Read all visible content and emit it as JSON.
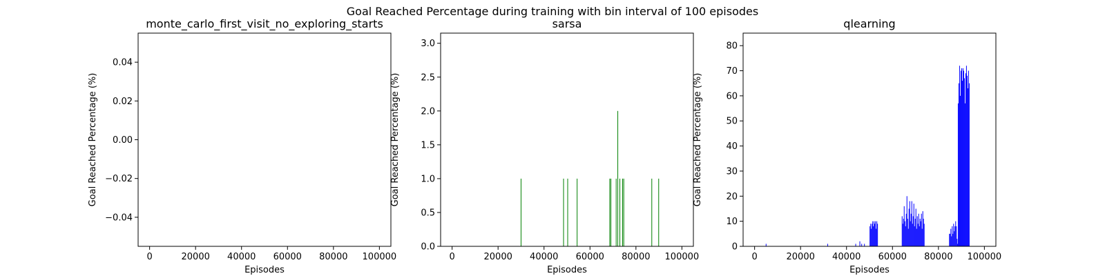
{
  "figure": {
    "suptitle": "Goal Reached Percentage during training with bin interval of 100 episodes"
  },
  "chart_data": [
    {
      "type": "bar",
      "title": "monte_carlo_first_visit_no_exploring_starts",
      "xlabel": "Episodes",
      "ylabel": "Goal Reached Percentage (%)",
      "xlim": [
        -5000,
        105000
      ],
      "ylim": [
        -0.055,
        0.055
      ],
      "xticks": [
        0,
        20000,
        40000,
        60000,
        80000,
        100000
      ],
      "yticks": [
        -0.04,
        -0.02,
        0.0,
        0.02,
        0.04
      ],
      "ytick_labels": [
        "−0.04",
        "−0.02",
        "0.00",
        "0.02",
        "0.04"
      ],
      "color": "#ff0000",
      "bin_width": 100,
      "bars": []
    },
    {
      "type": "bar",
      "title": "sarsa",
      "xlabel": "Episodes",
      "ylabel": "Goal Reached Percentage (%)",
      "xlim": [
        -5000,
        105000
      ],
      "ylim": [
        0,
        3.15
      ],
      "xticks": [
        0,
        20000,
        40000,
        60000,
        80000,
        100000
      ],
      "yticks": [
        0.0,
        0.5,
        1.0,
        1.5,
        2.0,
        2.5,
        3.0
      ],
      "ytick_labels": [
        "0.0",
        "0.5",
        "1.0",
        "1.5",
        "2.0",
        "2.5",
        "3.0"
      ],
      "color": "#008000",
      "bin_width": 100,
      "bars": [
        {
          "x": 30000,
          "y": 1
        },
        {
          "x": 48500,
          "y": 1
        },
        {
          "x": 50300,
          "y": 1
        },
        {
          "x": 54400,
          "y": 1
        },
        {
          "x": 68600,
          "y": 1
        },
        {
          "x": 69100,
          "y": 1
        },
        {
          "x": 71400,
          "y": 1
        },
        {
          "x": 72100,
          "y": 2
        },
        {
          "x": 73000,
          "y": 1
        },
        {
          "x": 74200,
          "y": 1
        },
        {
          "x": 74700,
          "y": 1
        },
        {
          "x": 86900,
          "y": 1
        },
        {
          "x": 89900,
          "y": 1
        }
      ]
    },
    {
      "type": "bar",
      "title": "qlearning",
      "xlabel": "Episodes",
      "ylabel": "Goal Reached Percentage (%)",
      "xlim": [
        -5000,
        105000
      ],
      "ylim": [
        0,
        85
      ],
      "xticks": [
        0,
        20000,
        40000,
        60000,
        80000,
        100000
      ],
      "yticks": [
        0,
        10,
        20,
        30,
        40,
        50,
        60,
        70,
        80
      ],
      "ytick_labels": [
        "0",
        "10",
        "20",
        "30",
        "40",
        "50",
        "60",
        "70",
        "80"
      ],
      "color": "#0000ff",
      "bin_width": 100,
      "bars": [
        {
          "x": 5000,
          "y": 1
        },
        {
          "x": 31800,
          "y": 1
        },
        {
          "x": 44000,
          "y": 1
        },
        {
          "x": 45800,
          "y": 2
        },
        {
          "x": 46600,
          "y": 1
        },
        {
          "x": 47800,
          "y": 1
        },
        {
          "x": 50200,
          "y": 8
        },
        {
          "x": 50500,
          "y": 9
        },
        {
          "x": 50800,
          "y": 7
        },
        {
          "x": 51100,
          "y": 9
        },
        {
          "x": 51400,
          "y": 10
        },
        {
          "x": 51700,
          "y": 8
        },
        {
          "x": 52000,
          "y": 10
        },
        {
          "x": 52300,
          "y": 9
        },
        {
          "x": 52600,
          "y": 10
        },
        {
          "x": 52900,
          "y": 7
        },
        {
          "x": 53200,
          "y": 10
        },
        {
          "x": 53500,
          "y": 9
        },
        {
          "x": 64200,
          "y": 12
        },
        {
          "x": 64500,
          "y": 9
        },
        {
          "x": 64800,
          "y": 11
        },
        {
          "x": 65100,
          "y": 16
        },
        {
          "x": 65400,
          "y": 10
        },
        {
          "x": 65700,
          "y": 8
        },
        {
          "x": 66000,
          "y": 13
        },
        {
          "x": 66300,
          "y": 20
        },
        {
          "x": 66600,
          "y": 11
        },
        {
          "x": 66900,
          "y": 7
        },
        {
          "x": 67200,
          "y": 15
        },
        {
          "x": 67500,
          "y": 18
        },
        {
          "x": 67800,
          "y": 10
        },
        {
          "x": 68100,
          "y": 13
        },
        {
          "x": 68400,
          "y": 18
        },
        {
          "x": 68700,
          "y": 9
        },
        {
          "x": 69000,
          "y": 12
        },
        {
          "x": 69300,
          "y": 17
        },
        {
          "x": 69600,
          "y": 8
        },
        {
          "x": 69900,
          "y": 11
        },
        {
          "x": 70200,
          "y": 15
        },
        {
          "x": 70500,
          "y": 7
        },
        {
          "x": 70800,
          "y": 12
        },
        {
          "x": 71100,
          "y": 9
        },
        {
          "x": 71400,
          "y": 13
        },
        {
          "x": 71700,
          "y": 8
        },
        {
          "x": 72000,
          "y": 11
        },
        {
          "x": 72300,
          "y": 10
        },
        {
          "x": 72600,
          "y": 13
        },
        {
          "x": 72900,
          "y": 7
        },
        {
          "x": 73200,
          "y": 14
        },
        {
          "x": 73500,
          "y": 11
        },
        {
          "x": 73800,
          "y": 9
        },
        {
          "x": 84800,
          "y": 5
        },
        {
          "x": 85100,
          "y": 5
        },
        {
          "x": 85400,
          "y": 7
        },
        {
          "x": 85700,
          "y": 4
        },
        {
          "x": 86000,
          "y": 8
        },
        {
          "x": 86300,
          "y": 5
        },
        {
          "x": 86600,
          "y": 9
        },
        {
          "x": 86900,
          "y": 6
        },
        {
          "x": 87200,
          "y": 8
        },
        {
          "x": 87500,
          "y": 10
        },
        {
          "x": 87800,
          "y": 8
        },
        {
          "x": 88100,
          "y": 3
        },
        {
          "x": 88300,
          "y": 1
        },
        {
          "x": 88600,
          "y": 57
        },
        {
          "x": 88900,
          "y": 65
        },
        {
          "x": 89200,
          "y": 72
        },
        {
          "x": 89500,
          "y": 60
        },
        {
          "x": 89800,
          "y": 70
        },
        {
          "x": 90100,
          "y": 71
        },
        {
          "x": 90400,
          "y": 66
        },
        {
          "x": 90700,
          "y": 71
        },
        {
          "x": 91000,
          "y": 70
        },
        {
          "x": 91300,
          "y": 67
        },
        {
          "x": 91600,
          "y": 57
        },
        {
          "x": 91900,
          "y": 69
        },
        {
          "x": 92200,
          "y": 72
        },
        {
          "x": 92500,
          "y": 68
        },
        {
          "x": 92800,
          "y": 63
        },
        {
          "x": 93100,
          "y": 70
        },
        {
          "x": 93400,
          "y": 65
        }
      ]
    }
  ]
}
